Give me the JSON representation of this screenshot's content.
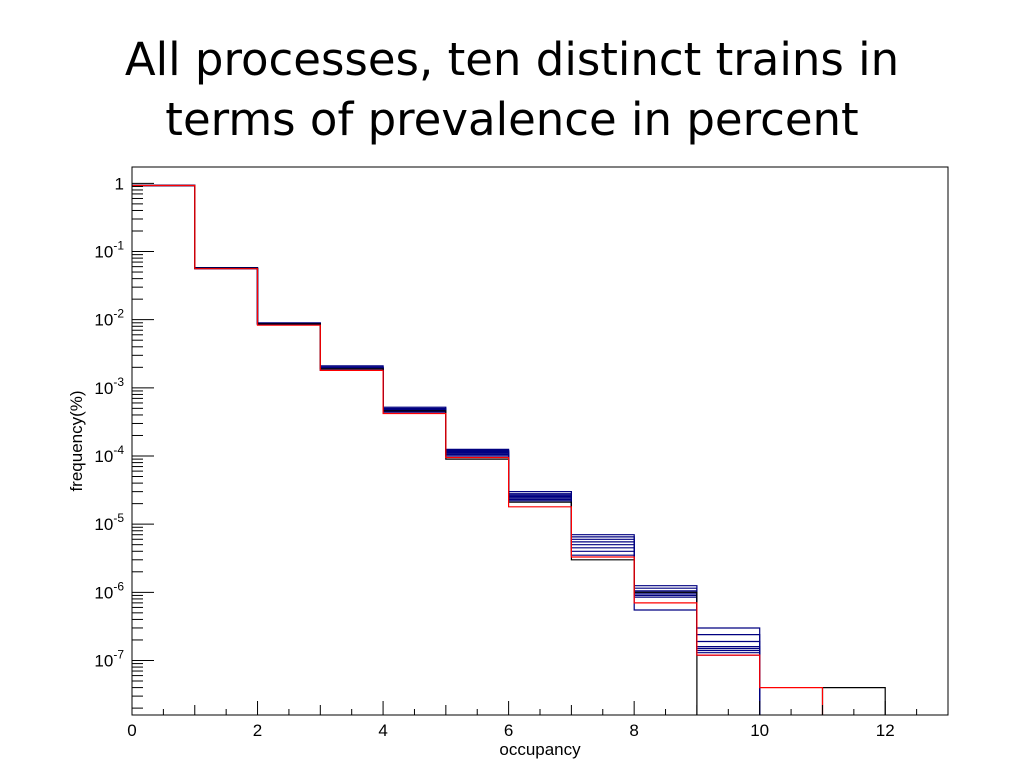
{
  "slide": {
    "title_lines": [
      "All processes, ten distinct trains in",
      "terms of prevalence in percent"
    ]
  },
  "chart_data": {
    "type": "line",
    "subtype": "step-histogram",
    "title": "All processes, ten distinct trains in terms of prevalence in percent",
    "xlabel": "occupancy",
    "ylabel": "frequency(%)",
    "xlim": [
      0,
      13
    ],
    "ylim_log10": [
      -7.8,
      0.24
    ],
    "y_scale": "log",
    "grid": false,
    "legend": "none",
    "x_ticks": [
      0,
      2,
      4,
      6,
      8,
      10,
      12
    ],
    "x_tick_labels": [
      "0",
      "2",
      "4",
      "6",
      "8",
      "10",
      "12"
    ],
    "y_ticks": [
      {
        "base": "1",
        "exp": ""
      },
      {
        "base": "10",
        "exp": "-1"
      },
      {
        "base": "10",
        "exp": "-2"
      },
      {
        "base": "10",
        "exp": "-3"
      },
      {
        "base": "10",
        "exp": "-4"
      },
      {
        "base": "10",
        "exp": "-5"
      },
      {
        "base": "10",
        "exp": "-6"
      },
      {
        "base": "10",
        "exp": "-7"
      }
    ],
    "y_tick_exponents": [
      0,
      -1,
      -2,
      -3,
      -4,
      -5,
      -6,
      -7
    ],
    "bin_edges": [
      0,
      1,
      2,
      3,
      4,
      5,
      6,
      7,
      8,
      9,
      10,
      11,
      12,
      13
    ],
    "series": [
      {
        "color": "#000080",
        "values": [
          0.93,
          0.057,
          0.0088,
          0.0021,
          0.00052,
          0.000125,
          3e-05,
          7e-06,
          1.25e-06,
          3e-07,
          null,
          null,
          null
        ]
      },
      {
        "color": "#000080",
        "values": [
          0.93,
          0.058,
          0.009,
          0.002,
          0.0005,
          0.00012,
          2.8e-05,
          6.5e-06,
          1.15e-06,
          2.4e-07,
          null,
          null,
          null
        ]
      },
      {
        "color": "#000080",
        "values": [
          0.93,
          0.058,
          0.0089,
          0.002,
          0.00049,
          0.000118,
          2.7e-05,
          6e-06,
          1.05e-06,
          1.9e-07,
          null,
          null,
          null
        ]
      },
      {
        "color": "#000080",
        "values": [
          0.93,
          0.057,
          0.0088,
          0.002,
          0.00048,
          0.000115,
          2.6e-05,
          5.5e-06,
          1e-06,
          1.6e-07,
          null,
          null,
          null
        ]
      },
      {
        "color": "#000080",
        "values": [
          0.93,
          0.057,
          0.0087,
          0.0019,
          0.00047,
          0.000112,
          2.5e-05,
          5e-06,
          9.5e-07,
          1.5e-07,
          null,
          null,
          null
        ]
      },
      {
        "color": "#000080",
        "values": [
          0.93,
          0.056,
          0.0086,
          0.0019,
          0.00046,
          0.000108,
          2.4e-05,
          4.5e-06,
          9e-07,
          1.4e-07,
          null,
          null,
          null
        ]
      },
      {
        "color": "#000080",
        "values": [
          0.93,
          0.056,
          0.0085,
          0.0019,
          0.00045,
          0.000105,
          2.3e-05,
          4e-06,
          8.5e-07,
          1.3e-07,
          null,
          null,
          null
        ]
      },
      {
        "color": "#000080",
        "values": [
          0.93,
          0.056,
          0.0085,
          0.0018,
          0.00044,
          0.0001,
          2.2e-05,
          3.5e-06,
          5.5e-07,
          1.2e-07,
          null,
          null,
          null
        ]
      },
      {
        "color": "#000000",
        "values": [
          0.93,
          0.057,
          0.0087,
          0.0019,
          0.00046,
          9e-05,
          2.1e-05,
          3e-06,
          1e-06,
          null,
          null,
          4e-08,
          null
        ]
      },
      {
        "color": "#ff0000",
        "values": [
          0.93,
          0.056,
          0.0083,
          0.0018,
          0.00042,
          9.5e-05,
          1.8e-05,
          3.3e-06,
          7e-07,
          1.2e-07,
          4e-08,
          null,
          null
        ]
      }
    ]
  }
}
